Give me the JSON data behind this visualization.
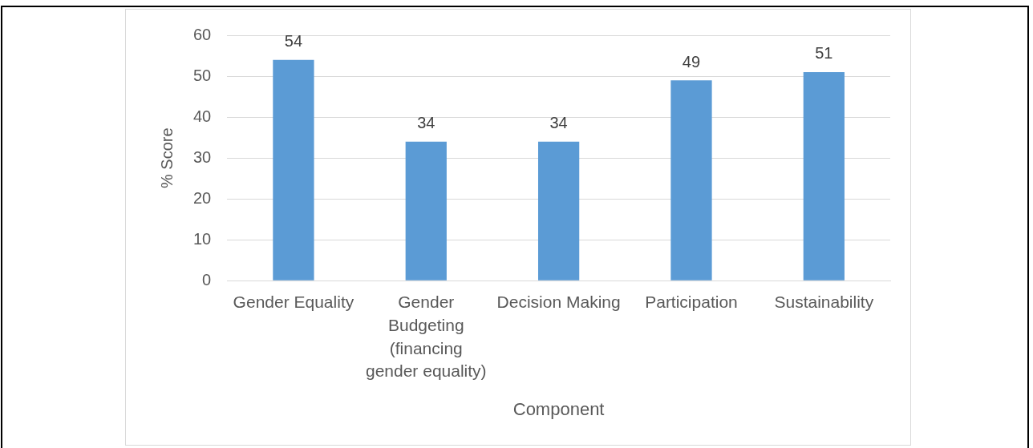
{
  "chart_data": {
    "type": "bar",
    "categories": [
      "Gender Equality",
      "Gender Budgeting (financing gender equality)",
      "Decision Making",
      "Participation",
      "Sustainability"
    ],
    "values": [
      54,
      34,
      34,
      49,
      51
    ],
    "color": "#5b9bd5",
    "xlabel": "Component",
    "ylabel": "% Score",
    "ylim": [
      0,
      60
    ],
    "yticks": [
      0,
      10,
      20,
      30,
      40,
      50,
      60
    ],
    "grid": "y",
    "data_labels": true
  }
}
